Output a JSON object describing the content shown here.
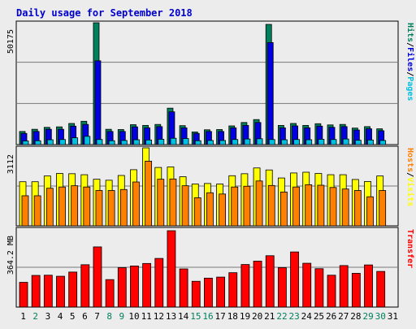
{
  "title": "Daily usage for September 2018",
  "colors": {
    "title": "#0000cc",
    "hits": "#00805c",
    "files": "#0000e0",
    "pages": "#00c0e0",
    "visits": "#ffff00",
    "hosts": "#ff8000",
    "kbytes": "#ff0000",
    "weekend_label": "#00805c",
    "weekday_label": "#000000"
  },
  "chart_data": [
    {
      "type": "bar",
      "panel": "top",
      "max_label": "50175",
      "ylim": [
        0,
        50175
      ],
      "grid": true,
      "right_labels": [
        "Hits",
        "Files",
        "Pages"
      ],
      "categories": [
        "1",
        "2",
        "3",
        "4",
        "5",
        "6",
        "7",
        "8",
        "9",
        "10",
        "11",
        "12",
        "13",
        "14",
        "15",
        "16",
        "17",
        "18",
        "19",
        "20",
        "21",
        "22",
        "23",
        "24",
        "25",
        "26",
        "27",
        "28",
        "29",
        "30",
        "31"
      ],
      "series": [
        {
          "name": "Hits",
          "values": [
            5400,
            6300,
            7100,
            7300,
            8700,
            9600,
            50175,
            6300,
            6200,
            8200,
            7900,
            8300,
            15000,
            7800,
            5200,
            6100,
            6200,
            7700,
            9100,
            10300,
            49500,
            7900,
            8700,
            7900,
            8600,
            8100,
            8300,
            6800,
            7400,
            6500,
            null
          ]
        },
        {
          "name": "Files",
          "values": [
            4600,
            5400,
            6300,
            6300,
            7600,
            8300,
            34500,
            5400,
            5400,
            7300,
            6900,
            7400,
            13500,
            6900,
            4600,
            5400,
            5400,
            6900,
            7900,
            9100,
            42000,
            6900,
            7700,
            6900,
            7600,
            7100,
            7400,
            6000,
            6500,
            5700,
            null
          ]
        },
        {
          "name": "Pages",
          "values": [
            1500,
            1600,
            2000,
            2100,
            2800,
            3400,
            2100,
            1600,
            1700,
            2000,
            1900,
            2200,
            2600,
            2500,
            1600,
            1700,
            1700,
            2100,
            2300,
            2400,
            2100,
            2000,
            2100,
            2000,
            2200,
            2100,
            2300,
            1800,
            1900,
            1700,
            null
          ]
        }
      ]
    },
    {
      "type": "bar",
      "panel": "middle",
      "max_label": "3112",
      "ylim": [
        0,
        3112
      ],
      "grid": true,
      "right_labels": [
        "Hosts",
        "Visits"
      ],
      "categories": [
        "1",
        "2",
        "3",
        "4",
        "5",
        "6",
        "7",
        "8",
        "9",
        "10",
        "11",
        "12",
        "13",
        "14",
        "15",
        "16",
        "17",
        "18",
        "19",
        "20",
        "21",
        "22",
        "23",
        "24",
        "25",
        "26",
        "27",
        "28",
        "29",
        "30",
        "31"
      ],
      "series": [
        {
          "name": "Visits",
          "values": [
            1760,
            1760,
            1990,
            2090,
            2080,
            2040,
            1860,
            1820,
            2010,
            2240,
            3112,
            2330,
            2350,
            1960,
            1670,
            1690,
            1670,
            2000,
            2080,
            2310,
            2230,
            1910,
            2110,
            2140,
            2090,
            2040,
            2040,
            1850,
            1770,
            1990,
            null
          ]
        },
        {
          "name": "Hosts",
          "values": [
            1200,
            1200,
            1500,
            1550,
            1600,
            1550,
            1410,
            1410,
            1450,
            1750,
            2580,
            1860,
            1870,
            1600,
            1120,
            1320,
            1270,
            1550,
            1580,
            1790,
            1610,
            1350,
            1550,
            1640,
            1620,
            1530,
            1470,
            1410,
            1160,
            1410,
            null
          ]
        }
      ]
    },
    {
      "type": "bar",
      "panel": "bottom",
      "max_label": "364.2 MB",
      "ylim": [
        0,
        364.2
      ],
      "grid": true,
      "right_labels": [
        "Transfer"
      ],
      "categories": [
        "1",
        "2",
        "3",
        "4",
        "5",
        "6",
        "7",
        "8",
        "9",
        "10",
        "11",
        "12",
        "13",
        "14",
        "15",
        "16",
        "17",
        "18",
        "19",
        "20",
        "21",
        "22",
        "23",
        "24",
        "25",
        "26",
        "27",
        "28",
        "29",
        "30",
        "31"
      ],
      "series": [
        {
          "name": "Transfer",
          "values": [
            118,
            151,
            152,
            147,
            167,
            202,
            287,
            131,
            188,
            196,
            208,
            232,
            364.2,
            182,
            123,
            138,
            143,
            164,
            203,
            219,
            245,
            188,
            263,
            209,
            183,
            152,
            198,
            161,
            201,
            170,
            null
          ]
        }
      ]
    }
  ],
  "x_labels": [
    {
      "text": "1",
      "weekend": false
    },
    {
      "text": "2",
      "weekend": true
    },
    {
      "text": "3",
      "weekend": false
    },
    {
      "text": "4",
      "weekend": false
    },
    {
      "text": "5",
      "weekend": false
    },
    {
      "text": "6",
      "weekend": false
    },
    {
      "text": "7",
      "weekend": false
    },
    {
      "text": "8",
      "weekend": true
    },
    {
      "text": "9",
      "weekend": true
    },
    {
      "text": "10",
      "weekend": false
    },
    {
      "text": "11",
      "weekend": false
    },
    {
      "text": "12",
      "weekend": false
    },
    {
      "text": "13",
      "weekend": false
    },
    {
      "text": "14",
      "weekend": false
    },
    {
      "text": "15",
      "weekend": true
    },
    {
      "text": "16",
      "weekend": true
    },
    {
      "text": "17",
      "weekend": false
    },
    {
      "text": "18",
      "weekend": false
    },
    {
      "text": "19",
      "weekend": false
    },
    {
      "text": "20",
      "weekend": false
    },
    {
      "text": "21",
      "weekend": false
    },
    {
      "text": "22",
      "weekend": true
    },
    {
      "text": "23",
      "weekend": true
    },
    {
      "text": "24",
      "weekend": false
    },
    {
      "text": "25",
      "weekend": false
    },
    {
      "text": "26",
      "weekend": false
    },
    {
      "text": "27",
      "weekend": false
    },
    {
      "text": "28",
      "weekend": false
    },
    {
      "text": "29",
      "weekend": true
    },
    {
      "text": "30",
      "weekend": true
    },
    {
      "text": "31",
      "weekend": false
    }
  ]
}
